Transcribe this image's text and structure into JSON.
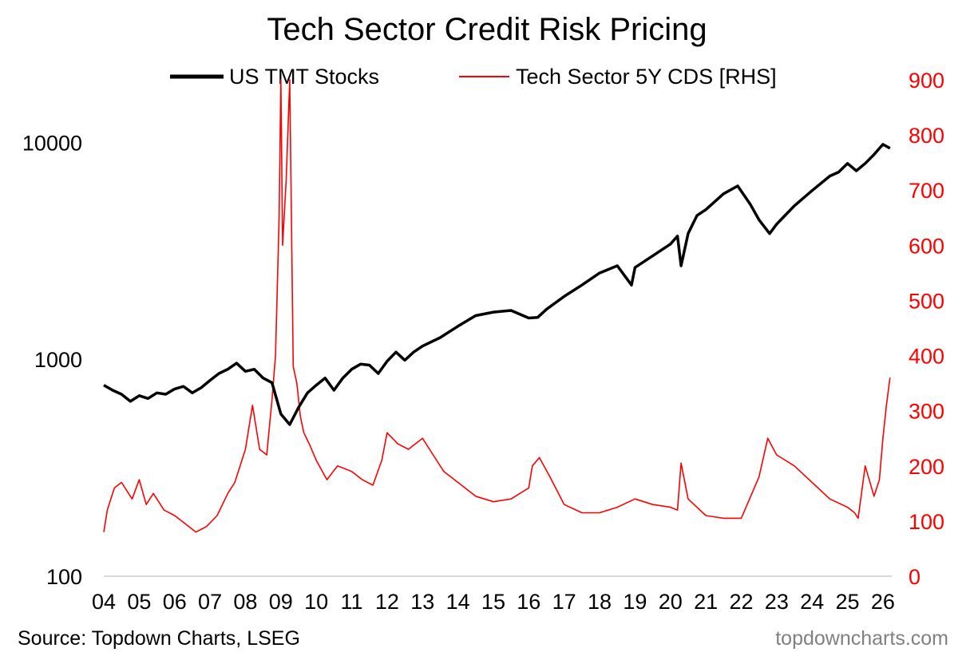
{
  "chart_data": {
    "type": "line",
    "title": "Tech Sector Credit Risk Pricing",
    "source": "Source: Topdown Charts, LSEG",
    "watermark": "topdowncharts.com",
    "legend_position": "top",
    "grid": false,
    "left_axis": {
      "scale": "log",
      "range": [
        100,
        16000
      ],
      "ticks": [
        "100",
        "1000",
        "10000"
      ],
      "tick_values": [
        100,
        1000,
        10000
      ]
    },
    "right_axis": {
      "scale": "linear",
      "range": [
        0,
        900
      ],
      "ticks": [
        "0",
        "100",
        "200",
        "300",
        "400",
        "500",
        "600",
        "700",
        "800",
        "900"
      ],
      "tick_values": [
        0,
        100,
        200,
        300,
        400,
        500,
        600,
        700,
        800,
        900
      ],
      "color": "#ff0000"
    },
    "x_axis": {
      "range": [
        2004.0,
        2026.25
      ],
      "ticks": [
        "04",
        "05",
        "06",
        "07",
        "08",
        "09",
        "10",
        "11",
        "12",
        "13",
        "14",
        "15",
        "16",
        "17",
        "18",
        "19",
        "20",
        "21",
        "22",
        "23",
        "24",
        "25",
        "26"
      ],
      "tick_years": [
        2004,
        2005,
        2006,
        2007,
        2008,
        2009,
        2010,
        2011,
        2012,
        2013,
        2014,
        2015,
        2016,
        2017,
        2018,
        2019,
        2020,
        2021,
        2022,
        2023,
        2024,
        2025,
        2026
      ]
    },
    "series": [
      {
        "name": "US TMT Stocks",
        "axis": "left",
        "color": "#000000",
        "x": [
          2004.0,
          2004.25,
          2004.5,
          2004.75,
          2005.0,
          2005.25,
          2005.5,
          2005.75,
          2006.0,
          2006.25,
          2006.5,
          2006.75,
          2007.0,
          2007.25,
          2007.5,
          2007.75,
          2008.0,
          2008.25,
          2008.5,
          2008.75,
          2009.0,
          2009.25,
          2009.5,
          2009.75,
          2010.0,
          2010.25,
          2010.5,
          2010.75,
          2011.0,
          2011.25,
          2011.5,
          2011.75,
          2012.0,
          2012.25,
          2012.5,
          2012.75,
          2013.0,
          2013.5,
          2014.0,
          2014.5,
          2015.0,
          2015.5,
          2016.0,
          2016.25,
          2016.5,
          2017.0,
          2017.5,
          2018.0,
          2018.5,
          2018.9,
          2019.0,
          2019.5,
          2020.0,
          2020.2,
          2020.3,
          2020.5,
          2020.75,
          2021.0,
          2021.5,
          2021.9,
          2022.25,
          2022.5,
          2022.8,
          2023.0,
          2023.5,
          2024.0,
          2024.5,
          2024.75,
          2025.0,
          2025.25,
          2025.5,
          2025.75,
          2026.0,
          2026.2
        ],
        "values": [
          760,
          720,
          690,
          640,
          680,
          660,
          700,
          690,
          730,
          750,
          700,
          740,
          800,
          860,
          900,
          960,
          880,
          900,
          820,
          780,
          560,
          500,
          600,
          700,
          760,
          820,
          720,
          820,
          900,
          950,
          940,
          860,
          980,
          1080,
          990,
          1080,
          1150,
          1260,
          1420,
          1590,
          1650,
          1680,
          1550,
          1560,
          1700,
          1950,
          2200,
          2500,
          2700,
          2200,
          2650,
          3000,
          3400,
          3700,
          2700,
          3800,
          4600,
          4900,
          5800,
          6300,
          5200,
          4400,
          3800,
          4200,
          5100,
          6000,
          7000,
          7300,
          8000,
          7400,
          8000,
          8800,
          9800,
          9400
        ]
      },
      {
        "name": "Tech Sector 5Y CDS [RHS]",
        "axis": "right",
        "color": "#ff0000",
        "x": [
          2004.0,
          2004.1,
          2004.3,
          2004.5,
          2004.8,
          2005.0,
          2005.2,
          2005.4,
          2005.7,
          2006.0,
          2006.3,
          2006.6,
          2006.9,
          2007.2,
          2007.5,
          2007.7,
          2008.0,
          2008.2,
          2008.4,
          2008.6,
          2008.75,
          2008.85,
          2008.95,
          2009.0,
          2009.05,
          2009.15,
          2009.25,
          2009.35,
          2009.45,
          2009.55,
          2009.65,
          2009.8,
          2010.0,
          2010.3,
          2010.6,
          2011.0,
          2011.3,
          2011.6,
          2011.85,
          2012.0,
          2012.3,
          2012.6,
          2013.0,
          2013.3,
          2013.6,
          2014.0,
          2014.5,
          2015.0,
          2015.5,
          2016.0,
          2016.1,
          2016.3,
          2016.6,
          2017.0,
          2017.5,
          2018.0,
          2018.5,
          2019.0,
          2019.5,
          2020.0,
          2020.2,
          2020.3,
          2020.5,
          2021.0,
          2021.5,
          2022.0,
          2022.5,
          2022.75,
          2023.0,
          2023.5,
          2024.0,
          2024.5,
          2025.0,
          2025.2,
          2025.3,
          2025.5,
          2025.75,
          2025.9,
          2026.0,
          2026.1,
          2026.2
        ],
        "values": [
          80,
          120,
          160,
          170,
          140,
          175,
          130,
          150,
          120,
          110,
          95,
          80,
          90,
          110,
          150,
          170,
          230,
          310,
          230,
          220,
          320,
          400,
          650,
          900,
          600,
          720,
          900,
          380,
          350,
          290,
          260,
          240,
          210,
          175,
          200,
          190,
          175,
          165,
          210,
          260,
          240,
          230,
          250,
          220,
          190,
          170,
          145,
          135,
          140,
          160,
          200,
          215,
          180,
          130,
          115,
          115,
          125,
          140,
          130,
          125,
          120,
          205,
          140,
          110,
          105,
          105,
          180,
          250,
          220,
          200,
          170,
          140,
          125,
          115,
          105,
          200,
          145,
          175,
          250,
          310,
          360
        ]
      }
    ]
  }
}
